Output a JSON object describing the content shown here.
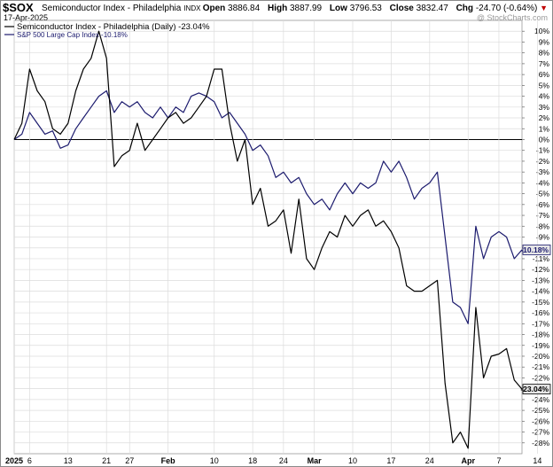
{
  "header": {
    "ticker": "$SOX",
    "title": "Semiconductor Index - Philadelphia",
    "exchange": "INDX",
    "date": "17-Apr-2025",
    "watermark": "@ StockCharts.com",
    "quote": {
      "open_label": "Open",
      "open": "3886.84",
      "high_label": "High",
      "high": "3887.99",
      "low_label": "Low",
      "low": "3796.53",
      "close_label": "Close",
      "close": "3832.47",
      "chg_label": "Chg",
      "chg": "-24.70 (-0.64%)",
      "chg_arrow": "▼"
    }
  },
  "colors": {
    "sox": "#000000",
    "spx": "#1c1b6e",
    "zero_line": "#000000",
    "grid": "#dcdcdc",
    "badge_bg": "#e6e6e6"
  },
  "chart_data": {
    "type": "line",
    "title": "Semiconductor Index - Philadelphia",
    "ylim": [
      -29,
      11
    ],
    "y_unit": "%",
    "y_ticks": [
      10,
      9,
      8,
      7,
      6,
      5,
      4,
      3,
      2,
      1,
      0,
      -1,
      -2,
      -3,
      -4,
      -5,
      -6,
      -7,
      -8,
      -9,
      -10,
      -11,
      -12,
      -13,
      -14,
      -15,
      -16,
      -17,
      -18,
      -19,
      -20,
      -21,
      -22,
      -23,
      -24,
      -25,
      -26,
      -27,
      -28
    ],
    "x_ticks": [
      {
        "label": "2025",
        "index": 0
      },
      {
        "label": "6",
        "index": 2
      },
      {
        "label": "13",
        "index": 7
      },
      {
        "label": "21",
        "index": 12
      },
      {
        "label": "27",
        "index": 15
      },
      {
        "label": "Feb",
        "index": 20
      },
      {
        "label": "10",
        "index": 26
      },
      {
        "label": "18",
        "index": 31
      },
      {
        "label": "24",
        "index": 35
      },
      {
        "label": "Mar",
        "index": 39
      },
      {
        "label": "10",
        "index": 44
      },
      {
        "label": "17",
        "index": 49
      },
      {
        "label": "24",
        "index": 54
      },
      {
        "label": "Apr",
        "index": 59
      },
      {
        "label": "7",
        "index": 63
      },
      {
        "label": "14",
        "index": 68
      }
    ],
    "series": [
      {
        "name": "Semiconductor Index - Philadelphia (Daily)",
        "legend_label": "Semiconductor Index - Philadelphia (Daily) -23.04%",
        "badge": "-23.04%",
        "color": "#000000",
        "values": [
          0,
          1.5,
          6.5,
          4.5,
          3.5,
          1,
          0.5,
          1.5,
          4.5,
          6.5,
          7.5,
          10,
          7.5,
          -2.5,
          -1.5,
          -1,
          1.5,
          -1,
          0,
          1,
          2,
          2.5,
          1.5,
          2,
          3,
          4,
          6.5,
          6.5,
          1.5,
          -2,
          0,
          -6,
          -4.5,
          -8,
          -7.5,
          -6.5,
          -10.5,
          -5.5,
          -11,
          -12,
          -10,
          -8.5,
          -9,
          -7,
          -8,
          -7,
          -6.5,
          -8,
          -7.5,
          -8.5,
          -10,
          -13.5,
          -14,
          -14,
          -13.5,
          -13,
          -22.5,
          -28,
          -27,
          -28.5,
          -15.5,
          -22,
          -20,
          -19.8,
          -19.3,
          -22.2,
          -23.04
        ]
      },
      {
        "name": "S&P 500 Large Cap Index",
        "legend_label": "S&P 500 Large Cap Index -10.18%",
        "badge": "-10.18%",
        "color": "#1c1b6e",
        "values": [
          0,
          0.5,
          2.5,
          1.5,
          0.5,
          0.8,
          -0.8,
          -0.5,
          1,
          2,
          3,
          4,
          4.5,
          2.5,
          3.5,
          3,
          3.5,
          2.5,
          2,
          3,
          2,
          3,
          2.5,
          4,
          4.3,
          4,
          3.5,
          2,
          2.5,
          1.5,
          0.5,
          -1,
          -0.5,
          -1.5,
          -3.5,
          -3,
          -4,
          -3.5,
          -5,
          -6,
          -5.5,
          -6.5,
          -5,
          -4,
          -5,
          -4,
          -4.5,
          -4,
          -2,
          -3,
          -2,
          -3.5,
          -5.5,
          -4.5,
          -4,
          -3,
          -9,
          -15,
          -15.5,
          -17,
          -8,
          -11,
          -9,
          -8.5,
          -9,
          -11,
          -10.18
        ]
      }
    ],
    "grid": true,
    "legend": "top-left"
  }
}
